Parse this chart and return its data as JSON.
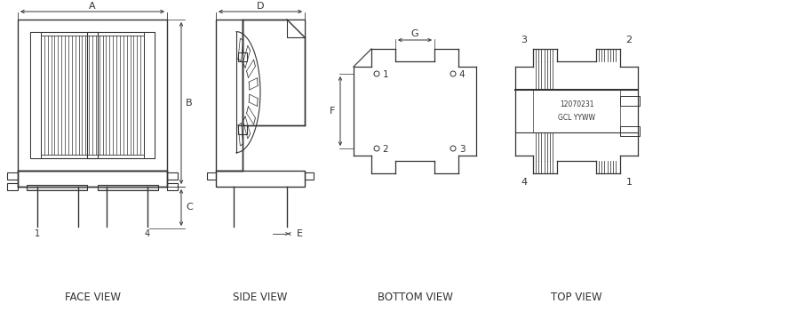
{
  "bg_color": "#ffffff",
  "line_color": "#333333",
  "text_color": "#333333",
  "fig_width": 8.96,
  "fig_height": 3.51,
  "dpi": 100,
  "labels": {
    "face_view": "FACE VIEW",
    "side_view": "SIDE VIEW",
    "bottom_view": "BOTTOM VIEW",
    "top_view": "TOP VIEW",
    "dim_A": "A",
    "dim_B": "B",
    "dim_C": "C",
    "dim_D": "D",
    "dim_E": "E",
    "dim_F": "F",
    "dim_G": "G",
    "code1": "12070231",
    "code2": "GCL YYWW"
  }
}
